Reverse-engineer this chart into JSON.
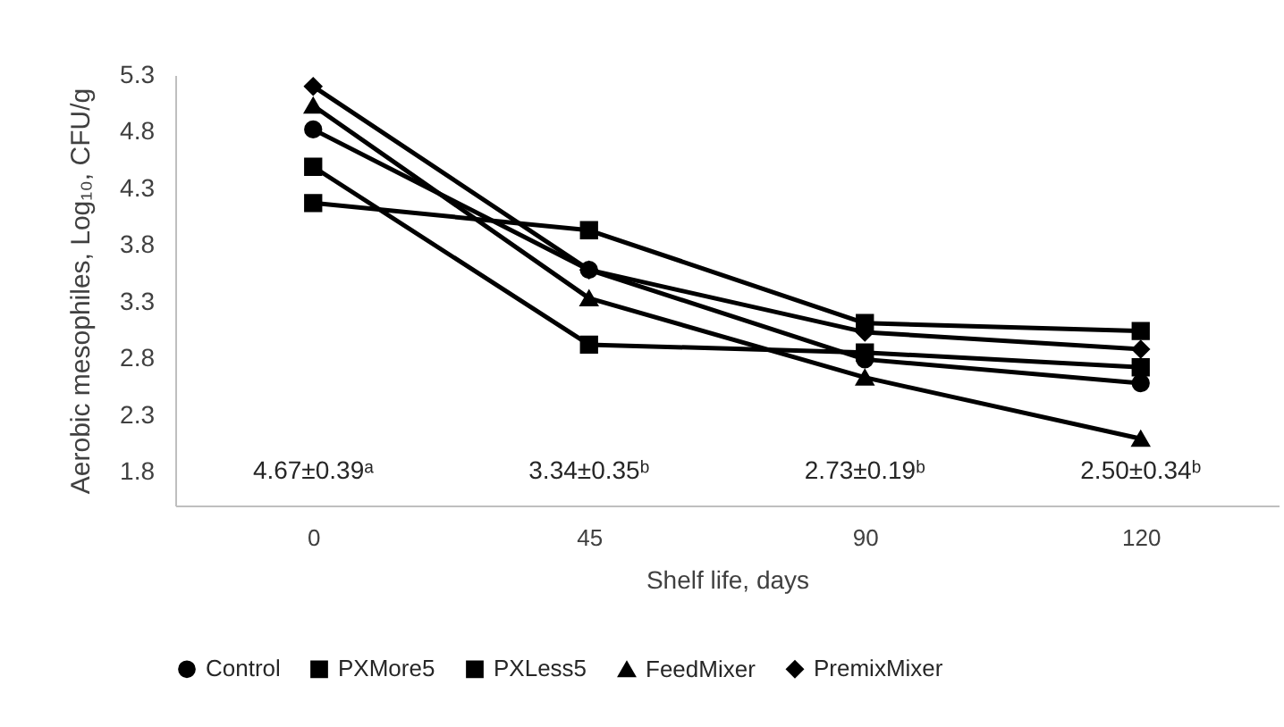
{
  "chart_data": {
    "type": "line",
    "xlabel": "Shelf life, days",
    "ylabel": "Aerobic mesophiles, Log₁₀, CFU/g",
    "categories": [
      "0",
      "45",
      "90",
      "120"
    ],
    "series": [
      {
        "name": "Control",
        "color": "#000000",
        "marker": "circle",
        "values": [
          4.82,
          3.58,
          2.79,
          2.58
        ]
      },
      {
        "name": "PXMore5",
        "color": "#000000",
        "marker": "square",
        "values": [
          4.49,
          2.92,
          2.85,
          2.72
        ]
      },
      {
        "name": "PXLess5",
        "color": "#000000",
        "marker": "square",
        "values": [
          4.17,
          3.93,
          3.11,
          3.04
        ]
      },
      {
        "name": "FeedMixer",
        "color": "#000000",
        "marker": "triangle",
        "values": [
          5.03,
          3.33,
          2.63,
          2.09
        ]
      },
      {
        "name": "PremixMixer",
        "color": "#000000",
        "marker": "diamond",
        "values": [
          5.2,
          3.58,
          3.03,
          2.88
        ]
      }
    ],
    "ylim": [
      1.5,
      5.3
    ],
    "yticks": [
      1.8,
      2.3,
      2.8,
      3.3,
      3.8,
      4.3,
      4.8,
      5.3
    ],
    "legend": "bottom",
    "line_style": "solid",
    "annotations": [
      "4.67±0.39ᵃ",
      "3.34±0.35ᵇ",
      "2.73±0.19ᵇ",
      "2.50±0.34ᵇ"
    ]
  }
}
